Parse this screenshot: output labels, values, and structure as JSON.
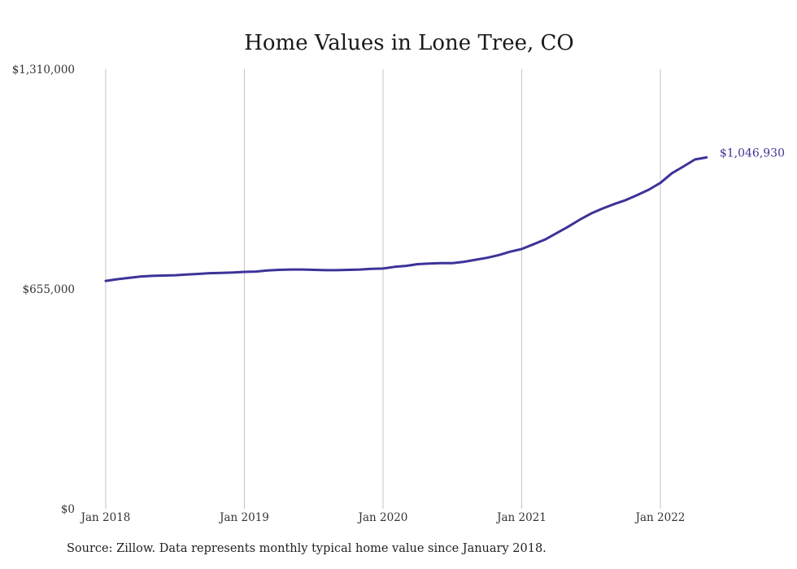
{
  "chart_data": {
    "type": "line",
    "title": "Home Values in Lone Tree, CO",
    "xlabel": "",
    "ylabel": "",
    "x_start": "2018-01",
    "x_range": [
      "2018-01",
      "2022-05"
    ],
    "ylim": [
      0,
      1310000
    ],
    "y_ticks": [
      0,
      655000,
      1310000
    ],
    "y_tick_labels": [
      "$0",
      "$655,000",
      "$1,310,000"
    ],
    "x_ticks": [
      "2018-01",
      "2019-01",
      "2020-01",
      "2021-01",
      "2022-01"
    ],
    "x_tick_labels": [
      "Jan 2018",
      "Jan 2019",
      "Jan 2020",
      "Jan 2021",
      "Jan 2022"
    ],
    "grid": "vertical",
    "line_color": "#3d3399",
    "end_label": "$1,046,930",
    "series": [
      {
        "x": [
          "2018-01",
          "2018-02",
          "2018-03",
          "2018-04",
          "2018-05",
          "2018-06",
          "2018-07",
          "2018-08",
          "2018-09",
          "2018-10",
          "2018-11",
          "2018-12",
          "2019-01",
          "2019-02",
          "2019-03",
          "2019-04",
          "2019-05",
          "2019-06",
          "2019-07",
          "2019-08",
          "2019-09",
          "2019-10",
          "2019-11",
          "2019-12",
          "2020-01",
          "2020-02",
          "2020-03",
          "2020-04",
          "2020-05",
          "2020-06",
          "2020-07",
          "2020-08",
          "2020-09",
          "2020-10",
          "2020-11",
          "2020-12",
          "2021-01",
          "2021-02",
          "2021-03",
          "2021-04",
          "2021-05",
          "2021-06",
          "2021-07",
          "2021-08",
          "2021-09",
          "2021-10",
          "2021-11",
          "2021-12",
          "2022-01",
          "2022-02",
          "2022-03",
          "2022-04",
          "2022-05"
        ],
        "values": [
          679000,
          684000,
          688000,
          692000,
          694000,
          695000,
          696000,
          698000,
          700000,
          702000,
          703000,
          704000,
          706000,
          707000,
          710000,
          712000,
          713000,
          713000,
          712000,
          711000,
          711000,
          712000,
          713000,
          715000,
          716000,
          721000,
          724000,
          729000,
          731000,
          732000,
          732000,
          736000,
          742000,
          748000,
          756000,
          766000,
          774000,
          788000,
          802000,
          821000,
          840000,
          861000,
          880000,
          895000,
          908000,
          920000,
          935000,
          951000,
          971000,
          1000000,
          1020000,
          1041000,
          1046930
        ]
      }
    ]
  },
  "source_note": "Source: Zillow. Data represents monthly typical home value since January 2018."
}
